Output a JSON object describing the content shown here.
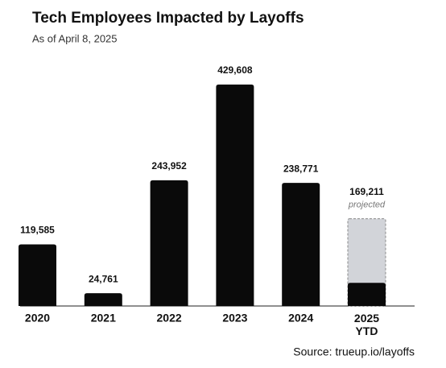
{
  "chart_data": {
    "type": "bar",
    "title": "Tech Employees Impacted by Layoffs",
    "subtitle": "As of April 8, 2025",
    "categories": [
      "2020",
      "2021",
      "2022",
      "2023",
      "2024",
      "2025 YTD"
    ],
    "values": [
      119585,
      24761,
      243952,
      429608,
      238771,
      45000
    ],
    "value_labels": [
      "119,585",
      "24,761",
      "243,952",
      "429,608",
      "238,771",
      null
    ],
    "color": "#0a0a0a",
    "projected": {
      "value": 169211,
      "value_label": "169,211",
      "label": "projected",
      "color": "#d2d4d9"
    },
    "source": "Source: trueup.io/layoffs"
  }
}
